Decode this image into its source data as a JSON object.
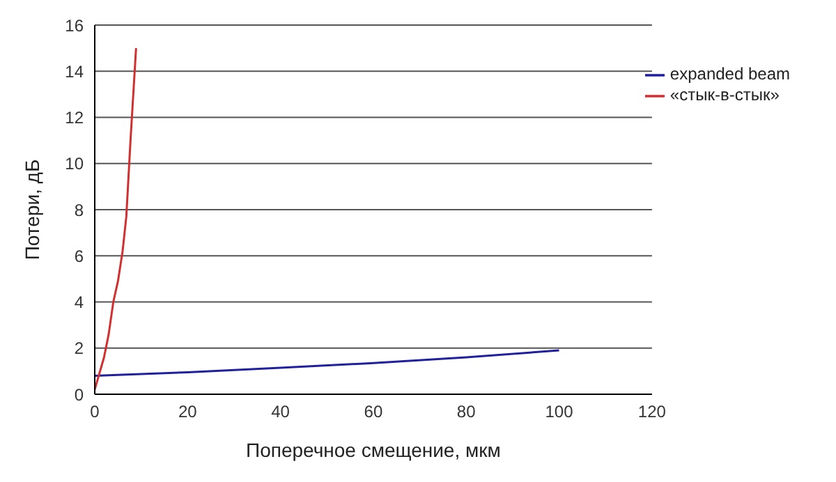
{
  "chart_data": {
    "type": "line",
    "xlabel": "Поперечное смещение, мкм",
    "ylabel": "Потери, дБ",
    "xlim": [
      0,
      120
    ],
    "xticks": [
      0,
      20,
      40,
      60,
      80,
      100,
      120
    ],
    "ylim": [
      0,
      16
    ],
    "yticks": [
      0,
      2,
      4,
      6,
      8,
      10,
      12,
      14,
      16
    ],
    "grid": "y",
    "legend": "top right",
    "marker": "none",
    "line_style": "solid",
    "series": [
      {
        "name": "expanded beam",
        "color": "#1f1fa0",
        "x": [
          0,
          20,
          40,
          60,
          80,
          100
        ],
        "values": [
          0.8,
          0.95,
          1.15,
          1.35,
          1.6,
          1.9
        ]
      },
      {
        "name": "«стык-в-стык»",
        "color": "#d03030",
        "x": [
          0,
          1,
          2,
          3,
          4,
          5,
          6,
          6.8,
          7.7,
          8.9
        ],
        "values": [
          0.2,
          0.9,
          1.6,
          2.6,
          4,
          4.9,
          6.2,
          7.7,
          11,
          15
        ]
      }
    ]
  }
}
